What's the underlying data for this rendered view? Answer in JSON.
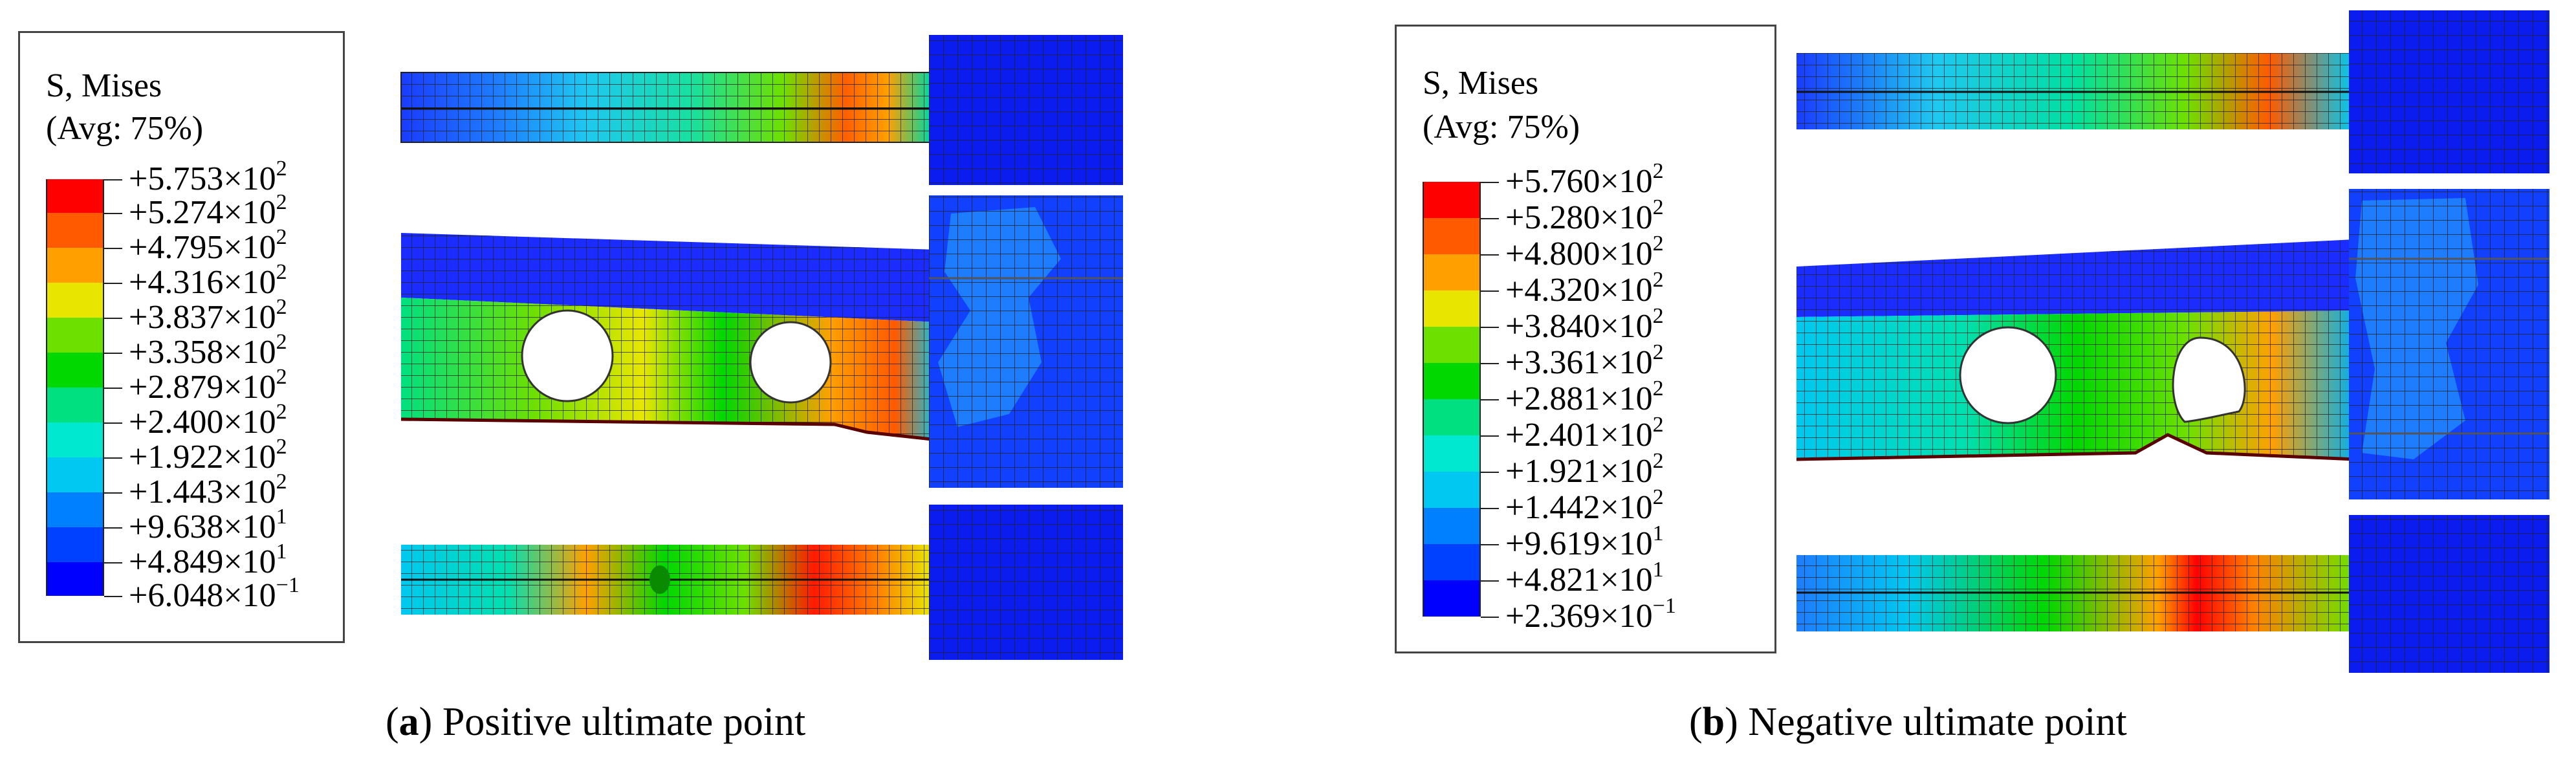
{
  "panels": [
    {
      "legend": {
        "title_line1": "S, Mises",
        "title_line2": "(Avg: 75%)",
        "ticks": [
          {
            "mantissa": "+5.753×10",
            "exp": "2"
          },
          {
            "mantissa": "+5.274×10",
            "exp": "2"
          },
          {
            "mantissa": "+4.795×10",
            "exp": "2"
          },
          {
            "mantissa": "+4.316×10",
            "exp": "2"
          },
          {
            "mantissa": "+3.837×10",
            "exp": "2"
          },
          {
            "mantissa": "+3.358×10",
            "exp": "2"
          },
          {
            "mantissa": "+2.879×10",
            "exp": "2"
          },
          {
            "mantissa": "+2.400×10",
            "exp": "2"
          },
          {
            "mantissa": "+1.922×10",
            "exp": "2"
          },
          {
            "mantissa": "+1.443×10",
            "exp": "2"
          },
          {
            "mantissa": "+9.638×10",
            "exp": "1"
          },
          {
            "mantissa": "+4.849×10",
            "exp": "1"
          },
          {
            "mantissa": "+6.048×10",
            "exp": "−1"
          }
        ]
      },
      "caption": {
        "letter": "a",
        "text": " Positive ultimate point"
      }
    },
    {
      "legend": {
        "title_line1": "S, Mises",
        "title_line2": "(Avg: 75%)",
        "ticks": [
          {
            "mantissa": "+5.760×10",
            "exp": "2"
          },
          {
            "mantissa": "+5.280×10",
            "exp": "2"
          },
          {
            "mantissa": "+4.800×10",
            "exp": "2"
          },
          {
            "mantissa": "+4.320×10",
            "exp": "2"
          },
          {
            "mantissa": "+3.840×10",
            "exp": "2"
          },
          {
            "mantissa": "+3.361×10",
            "exp": "2"
          },
          {
            "mantissa": "+2.881×10",
            "exp": "2"
          },
          {
            "mantissa": "+2.401×10",
            "exp": "2"
          },
          {
            "mantissa": "+1.921×10",
            "exp": "2"
          },
          {
            "mantissa": "+1.442×10",
            "exp": "2"
          },
          {
            "mantissa": "+9.619×10",
            "exp": "1"
          },
          {
            "mantissa": "+4.821×10",
            "exp": "1"
          },
          {
            "mantissa": "+2.369×10",
            "exp": "−1"
          }
        ]
      },
      "caption": {
        "letter": "b",
        "text": " Negative ultimate point"
      }
    }
  ],
  "colormap": [
    "#ff0000",
    "#ff5a00",
    "#ffa000",
    "#e8e600",
    "#6ee000",
    "#00d800",
    "#00e080",
    "#00e8d0",
    "#00c8f0",
    "#0080ff",
    "#0040ff",
    "#0000ff"
  ]
}
